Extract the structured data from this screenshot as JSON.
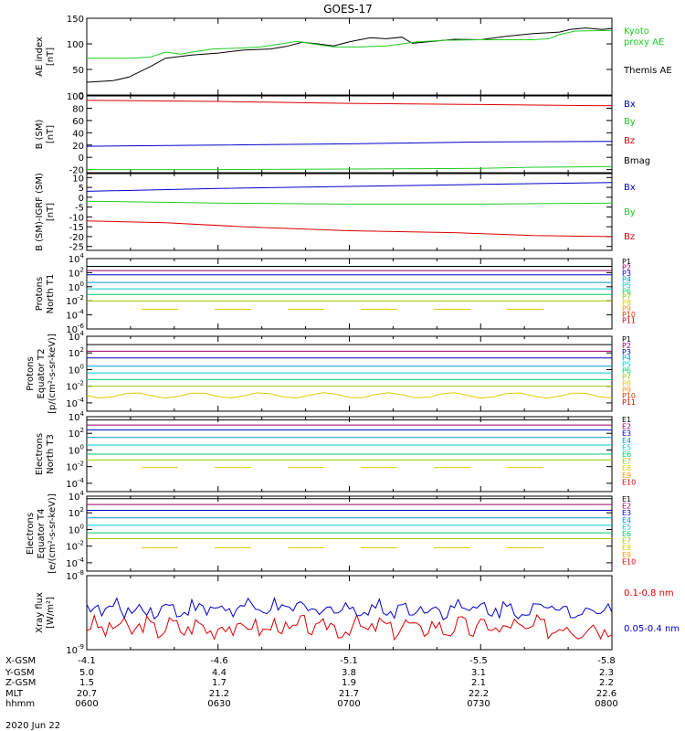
{
  "title": "GOES-17",
  "date_label": "2020 Jun 22",
  "colors": {
    "black": "#000000",
    "green": "#22cc22",
    "blue": "#0000cc",
    "red": "#dd0000",
    "p_series": [
      "#000000",
      "#990066",
      "#0000cc",
      "#0099cc",
      "#00cccc",
      "#00cc66",
      "#99cc00",
      "#ddcc00",
      "#ff9900",
      "#dd3300",
      "#cc0000"
    ],
    "e_series": [
      "#000000",
      "#990066",
      "#0000cc",
      "#0099cc",
      "#00cccc",
      "#00cc66",
      "#99cc00",
      "#ddcc00",
      "#ff9900",
      "#dd0000"
    ]
  },
  "ephemeris": {
    "labels": [
      "X-GSM",
      "Y-GSM",
      "Z-GSM",
      "MLT",
      "hhmm"
    ],
    "columns": [
      [
        "-4.1",
        "5.0",
        "1.5",
        "20.7",
        "0600"
      ],
      [
        "-4.6",
        "4.4",
        "1.7",
        "21.2",
        "0630"
      ],
      [
        "-5.1",
        "3.8",
        "1.9",
        "21.7",
        "0700"
      ],
      [
        "-5.5",
        "3.1",
        "2.1",
        "22.2",
        "0730"
      ],
      [
        "-5.8",
        "2.3",
        "2.2",
        "22.6",
        "0800"
      ]
    ]
  },
  "chart_data": [
    {
      "type": "line",
      "id": "ae",
      "ylabel": "AE index\n[nT]",
      "ylim": [
        0,
        150
      ],
      "yticks": [
        "0",
        "50",
        "100",
        "150"
      ],
      "legend": [
        {
          "text": "Kyoto",
          "color": "green"
        },
        {
          "text": "proxy AE",
          "color": "green"
        },
        {
          "text": "Themis AE",
          "color": "black"
        }
      ],
      "series": [
        {
          "color": "black",
          "points": [
            [
              0,
              25
            ],
            [
              0.05,
              28
            ],
            [
              0.08,
              35
            ],
            [
              0.12,
              55
            ],
            [
              0.15,
              72
            ],
            [
              0.2,
              78
            ],
            [
              0.25,
              82
            ],
            [
              0.3,
              88
            ],
            [
              0.35,
              90
            ],
            [
              0.38,
              95
            ],
            [
              0.41,
              103
            ],
            [
              0.44,
              100
            ],
            [
              0.47,
              96
            ],
            [
              0.5,
              104
            ],
            [
              0.54,
              112
            ],
            [
              0.57,
              110
            ],
            [
              0.6,
              113
            ],
            [
              0.62,
              101
            ],
            [
              0.65,
              104
            ],
            [
              0.7,
              109
            ],
            [
              0.75,
              108
            ],
            [
              0.8,
              115
            ],
            [
              0.85,
              120
            ],
            [
              0.9,
              123
            ],
            [
              0.92,
              128
            ],
            [
              0.95,
              131
            ],
            [
              0.98,
              128
            ],
            [
              1,
              130
            ]
          ]
        },
        {
          "color": "green",
          "points": [
            [
              0,
              72
            ],
            [
              0.08,
              72
            ],
            [
              0.12,
              74
            ],
            [
              0.15,
              84
            ],
            [
              0.18,
              80
            ],
            [
              0.2,
              84
            ],
            [
              0.24,
              90
            ],
            [
              0.3,
              92
            ],
            [
              0.33,
              94
            ],
            [
              0.37,
              100
            ],
            [
              0.4,
              105
            ],
            [
              0.43,
              100
            ],
            [
              0.47,
              94
            ],
            [
              0.52,
              94
            ],
            [
              0.57,
              96
            ],
            [
              0.6,
              100
            ],
            [
              0.63,
              104
            ],
            [
              0.68,
              107
            ],
            [
              0.75,
              108
            ],
            [
              0.85,
              108
            ],
            [
              0.88,
              110
            ],
            [
              0.9,
              118
            ],
            [
              0.93,
              125
            ],
            [
              1,
              126
            ]
          ]
        }
      ]
    },
    {
      "type": "line",
      "id": "bsm",
      "ylabel": "B (SM)\n[nT]",
      "ylim": [
        -25,
        100
      ],
      "yticks": [
        "-20",
        "0",
        "20",
        "40",
        "60",
        "80",
        "100"
      ],
      "legend": [
        {
          "text": "Bx",
          "color": "blue"
        },
        {
          "text": "By",
          "color": "green"
        },
        {
          "text": "Bz",
          "color": "red"
        },
        {
          "text": "Bmag",
          "color": "black"
        }
      ],
      "series": [
        {
          "color": "red",
          "points": [
            [
              0,
              93
            ],
            [
              0.25,
              91
            ],
            [
              0.5,
              88
            ],
            [
              0.75,
              86
            ],
            [
              1,
              84
            ]
          ]
        },
        {
          "color": "blue",
          "points": [
            [
              0,
              18
            ],
            [
              0.25,
              20
            ],
            [
              0.5,
              22
            ],
            [
              0.75,
              25
            ],
            [
              1,
              26
            ]
          ]
        },
        {
          "color": "green",
          "points": [
            [
              0,
              -20
            ],
            [
              0.25,
              -20
            ],
            [
              0.5,
              -19
            ],
            [
              0.75,
              -18
            ],
            [
              0.85,
              -16
            ],
            [
              1,
              -15
            ]
          ]
        }
      ]
    },
    {
      "type": "line",
      "id": "bsm-igrf",
      "ylabel": "B (SM)-IGRF (SM)\n[nT]",
      "ylim": [
        -27,
        12
      ],
      "yticks": [
        "-25",
        "-20",
        "-15",
        "-10",
        "-5",
        "0",
        "5",
        "10"
      ],
      "legend": [
        {
          "text": "Bx",
          "color": "blue"
        },
        {
          "text": "By",
          "color": "green"
        },
        {
          "text": "Bz",
          "color": "red"
        }
      ],
      "series": [
        {
          "color": "blue",
          "points": [
            [
              0,
              3
            ],
            [
              0.25,
              4.5
            ],
            [
              0.5,
              5.5
            ],
            [
              0.75,
              6.5
            ],
            [
              1,
              7.5
            ]
          ]
        },
        {
          "color": "green",
          "points": [
            [
              0,
              -2
            ],
            [
              0.25,
              -3
            ],
            [
              0.5,
              -3.5
            ],
            [
              0.75,
              -3.5
            ],
            [
              1,
              -3
            ]
          ]
        },
        {
          "color": "red",
          "points": [
            [
              0,
              -12
            ],
            [
              0.15,
              -13
            ],
            [
              0.3,
              -15
            ],
            [
              0.5,
              -17
            ],
            [
              0.7,
              -18
            ],
            [
              0.85,
              -19.5
            ],
            [
              1,
              -20
            ]
          ]
        }
      ]
    },
    {
      "type": "line",
      "id": "protons-t1",
      "scale": "log",
      "ylabel": "Protons\nNorth T1",
      "ylog": [
        -6,
        4
      ],
      "yticks": [
        {
          "b": "10",
          "e": "4"
        },
        {
          "b": "10",
          "e": "2"
        },
        {
          "b": "10",
          "e": "0"
        },
        {
          "b": "10",
          "e": "-2"
        },
        {
          "b": "10",
          "e": "-4"
        },
        {
          "b": "10",
          "e": "-6"
        }
      ],
      "legend": [
        "P1",
        "P2",
        "P3",
        "P4",
        "P5",
        "P6",
        "P7",
        "P8",
        "P9",
        "P10",
        "P11"
      ],
      "series": [
        {
          "name": "P1",
          "log": 2.9
        },
        {
          "name": "P2",
          "log": 2.3
        },
        {
          "name": "P3",
          "log": 1.7
        },
        {
          "name": "P4",
          "log": 0.6
        },
        {
          "name": "P5",
          "log": -0.3
        },
        {
          "name": "P6",
          "log": -1.1
        },
        {
          "name": "P7",
          "log": -2.0
        },
        {
          "name": "P8",
          "log": -3.2,
          "dashed": true
        }
      ]
    },
    {
      "type": "line",
      "id": "protons-t2",
      "scale": "log",
      "ylabel": "Protons\nEquator T2\n[p/(cm²-s-sr-keV)]",
      "ylog": [
        -5,
        4
      ],
      "yticks": [
        {
          "b": "10",
          "e": "4"
        },
        {
          "b": "10",
          "e": "2"
        },
        {
          "b": "10",
          "e": "0"
        },
        {
          "b": "10",
          "e": "-2"
        },
        {
          "b": "10",
          "e": "-4"
        }
      ],
      "legend": [
        "P1",
        "P2",
        "P3",
        "P4",
        "P5",
        "P6",
        "P7",
        "P8",
        "P9",
        "P10",
        "P11"
      ],
      "series": [
        {
          "name": "P1",
          "log": 3.0
        },
        {
          "name": "P2",
          "log": 2.2
        },
        {
          "name": "P3",
          "log": 1.4
        },
        {
          "name": "P4",
          "log": 0.4
        },
        {
          "name": "P5",
          "log": -0.4
        },
        {
          "name": "P6",
          "log": -1.2
        },
        {
          "name": "P7",
          "log": -2.0
        },
        {
          "name": "P8",
          "log": -3.1,
          "wavy": true
        }
      ]
    },
    {
      "type": "line",
      "id": "electrons-t3",
      "scale": "log",
      "ylabel": "Electrons\nNorth T3",
      "ylog": [
        -5,
        4
      ],
      "yticks": [
        {
          "b": "10",
          "e": "4"
        },
        {
          "b": "10",
          "e": "2"
        },
        {
          "b": "10",
          "e": "0"
        },
        {
          "b": "10",
          "e": "-2"
        },
        {
          "b": "10",
          "e": "-4"
        }
      ],
      "legend": [
        "E1",
        "E2",
        "E3",
        "E4",
        "E5",
        "E6",
        "E7",
        "E8",
        "E9",
        "E10"
      ],
      "series": [
        {
          "name": "E1",
          "log": 3.6
        },
        {
          "name": "E2",
          "log": 3.0
        },
        {
          "name": "E3",
          "log": 2.4
        },
        {
          "name": "E4",
          "log": 1.5
        },
        {
          "name": "E5",
          "log": 0.6
        },
        {
          "name": "E6",
          "log": -0.5
        },
        {
          "name": "E7",
          "log": -1.2
        },
        {
          "name": "E8",
          "log": -2.1,
          "dashed": true
        }
      ]
    },
    {
      "type": "line",
      "id": "electrons-t4",
      "scale": "log",
      "ylabel": "Electrons\nEquator T4\n[e/(cm²-s-sr-keV)]",
      "ylog": [
        -5,
        4
      ],
      "yticks": [
        {
          "b": "10",
          "e": "4"
        },
        {
          "b": "10",
          "e": "2"
        },
        {
          "b": "10",
          "e": "0"
        },
        {
          "b": "10",
          "e": "-2"
        },
        {
          "b": "10",
          "e": "-4"
        }
      ],
      "legend": [
        "E1",
        "E2",
        "E3",
        "E4",
        "E5",
        "E6",
        "E7",
        "E8",
        "E9",
        "E10"
      ],
      "series": [
        {
          "name": "E1",
          "log": 3.7
        },
        {
          "name": "E2",
          "log": 3.0
        },
        {
          "name": "E3",
          "log": 2.3
        },
        {
          "name": "E4",
          "log": 1.4
        },
        {
          "name": "E5",
          "log": 0.5
        },
        {
          "name": "E6",
          "log": -0.4
        },
        {
          "name": "E7",
          "log": -1.1
        },
        {
          "name": "E8",
          "log": -2.2,
          "dashed": true
        }
      ]
    },
    {
      "type": "line",
      "id": "xray",
      "scale": "log",
      "ylabel": "Xray flux\n[W/m²]",
      "ylog": [
        -9,
        -8
      ],
      "yticks": [
        {
          "b": "10",
          "e": "-8"
        },
        {
          "b": "10",
          "e": "-9"
        }
      ],
      "legend": [
        {
          "text": "0.1-0.8 nm",
          "color": "red"
        },
        {
          "text": "0.05-0.4 nm",
          "color": "blue"
        }
      ],
      "series": [
        {
          "name": "0.1-0.8 nm",
          "color": "red",
          "noisy": true,
          "base": -8.7,
          "amp": 0.12
        },
        {
          "name": "0.05-0.4 nm",
          "color": "blue",
          "noisy": true,
          "base": -8.45,
          "amp": 0.1
        }
      ]
    }
  ]
}
